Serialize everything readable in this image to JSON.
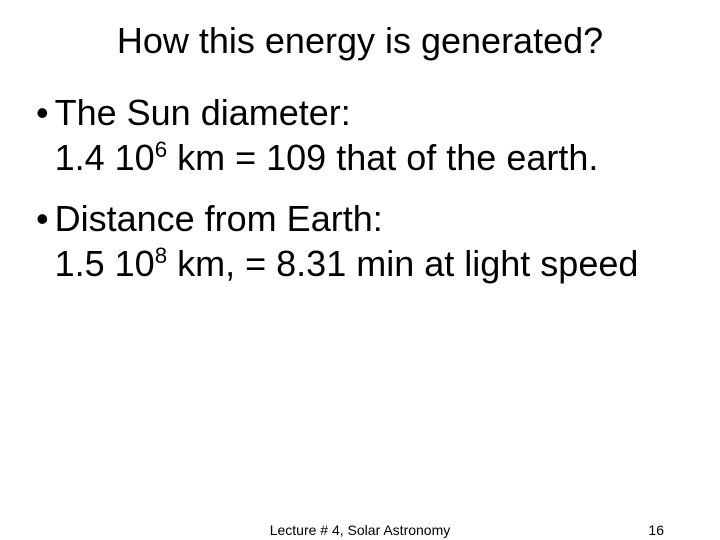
{
  "title": "How this energy is generated?",
  "bullets": [
    {
      "lead": "The Sun diameter:",
      "value_pre": "1.4 10",
      "exp": "6",
      "value_post": " km = 109 that of the earth."
    },
    {
      "lead": "Distance from Earth:",
      "value_pre": "1.5 10",
      "exp": "8",
      "value_post": " km, = 8.31 min at light speed"
    }
  ],
  "footer": {
    "center": "Lecture # 4, Solar Astronomy",
    "page": "16"
  },
  "style": {
    "background_color": "#ffffff",
    "text_color": "#000000",
    "title_fontsize": 36,
    "body_fontsize": 36,
    "footer_fontsize": 14,
    "font_family": "Arial"
  }
}
